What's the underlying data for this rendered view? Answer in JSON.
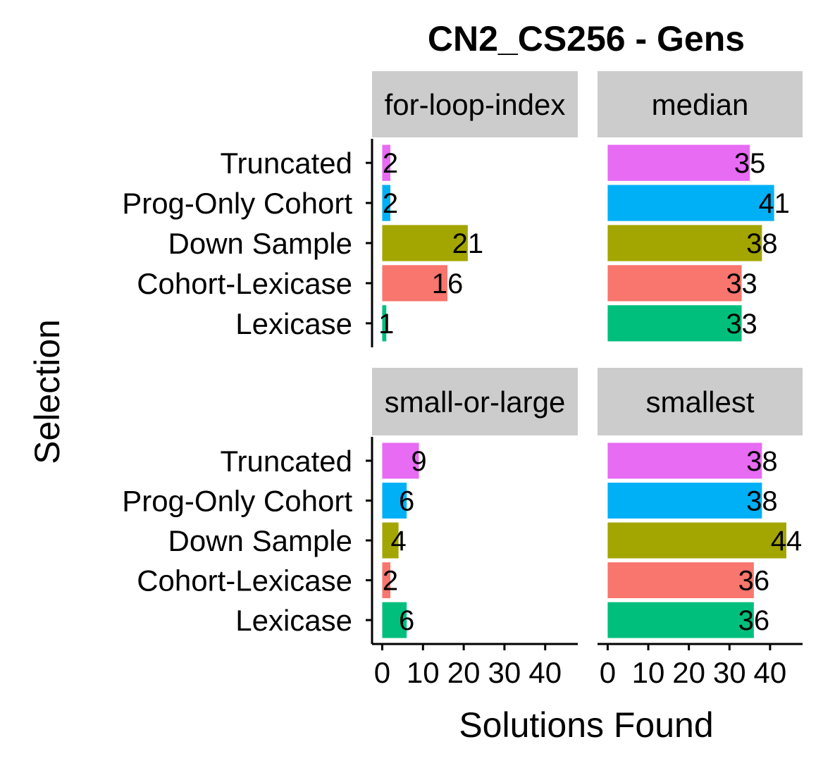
{
  "chart_data": {
    "type": "bar",
    "orientation": "horizontal",
    "title": "CN2_CS256 - Gens",
    "xlabel": "Solutions Found",
    "ylabel": "Selection",
    "xlim": [
      -2.5,
      48
    ],
    "x_ticks": [
      0,
      10,
      20,
      30,
      40
    ],
    "x_tick_labels": [
      "0",
      "10",
      "20",
      "30",
      "40"
    ],
    "categories": [
      "Truncated",
      "Prog-Only Cohort",
      "Down Sample",
      "Cohort-Lexicase",
      "Lexicase"
    ],
    "category_colors": {
      "Truncated": "#E76BF3",
      "Prog-Only Cohort": "#00B0F6",
      "Down Sample": "#A3A500",
      "Cohort-Lexicase": "#F8766D",
      "Lexicase": "#00BF7D"
    },
    "facets": [
      {
        "label": "for-loop-index",
        "values": [
          2,
          2,
          21,
          16,
          1
        ]
      },
      {
        "label": "median",
        "values": [
          35,
          41,
          38,
          33,
          33
        ]
      },
      {
        "label": "small-or-large",
        "values": [
          9,
          6,
          4,
          2,
          6
        ]
      },
      {
        "label": "smallest",
        "values": [
          38,
          38,
          44,
          36,
          36
        ]
      }
    ],
    "grid": false,
    "legend": "none"
  }
}
